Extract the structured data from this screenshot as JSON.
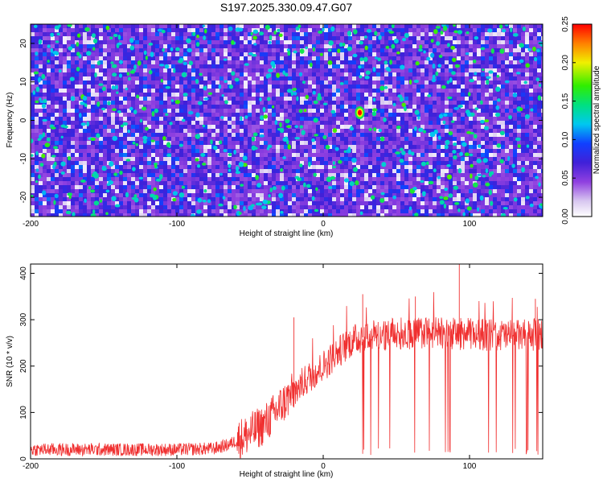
{
  "figure": {
    "title": "S197.2025.330.09.47.G07"
  },
  "chart_data": [
    {
      "type": "heatmap",
      "name": "spectrogram",
      "xlabel": "Height of straight line (km)",
      "ylabel": "Frequency (Hz)",
      "xlim": [
        -200,
        150
      ],
      "ylim": [
        -25,
        25
      ],
      "xticks": [
        -200,
        -100,
        0,
        100
      ],
      "xtick_labels": [
        "-200",
        "-100",
        "0",
        "100"
      ],
      "yticks": [
        20,
        10,
        0,
        -10,
        -20
      ],
      "ytick_labels": [
        "20",
        "10",
        "0",
        "-10",
        "-20"
      ],
      "colorbar": {
        "label": "Normalized spectral amplitude",
        "range": [
          0,
          0.25
        ],
        "ticks": [
          0,
          0.05,
          0.1,
          0.15,
          0.2,
          0.25
        ],
        "tick_labels": [
          "0.00",
          "0.05",
          "0.10",
          "0.15",
          "0.20",
          "0.25"
        ]
      },
      "peak": {
        "x": 25,
        "y": 2,
        "value": 0.25
      },
      "background_level": [
        0.0,
        0.08
      ]
    },
    {
      "type": "line",
      "name": "snr",
      "xlabel": "Height of straight line (km)",
      "ylabel": "SNR (10 * v/v)",
      "xlim": [
        -200,
        150
      ],
      "ylim": [
        0,
        420
      ],
      "xticks": [
        -200,
        -100,
        0,
        100
      ],
      "xtick_labels": [
        "-200",
        "-100",
        "0",
        "100"
      ],
      "yticks": [
        0,
        100,
        200,
        300,
        400
      ],
      "ytick_labels": [
        "0",
        "100",
        "200",
        "300",
        "400"
      ],
      "color": "#f03030",
      "series": [
        {
          "name": "SNR",
          "x": [
            -200,
            -150,
            -100,
            -75,
            -65,
            -50,
            -40,
            -30,
            -20,
            -10,
            0,
            10,
            20,
            30,
            50,
            70,
            90,
            110,
            130,
            150
          ],
          "y": [
            20,
            20,
            20,
            22,
            30,
            55,
            75,
            110,
            145,
            175,
            200,
            230,
            255,
            265,
            270,
            272,
            270,
            268,
            265,
            268
          ]
        }
      ],
      "spikes": [
        {
          "x": -20,
          "y": 305
        },
        {
          "x": 27,
          "y": 355
        },
        {
          "x": 63,
          "y": 350
        },
        {
          "x": 93,
          "y": 420
        },
        {
          "x": 145,
          "y": 345
        }
      ],
      "dropout_start_x": 25
    }
  ]
}
